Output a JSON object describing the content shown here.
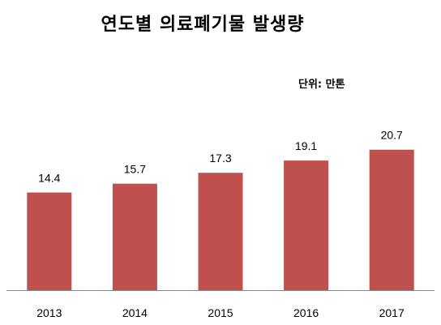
{
  "chart_data": {
    "type": "bar",
    "title": "연도별 의료폐기물 발생량",
    "unit_label": "단위: 만톤",
    "categories": [
      "2013",
      "2014",
      "2015",
      "2016",
      "2017"
    ],
    "values": [
      14.4,
      15.7,
      17.3,
      19.1,
      20.7
    ],
    "value_labels": [
      "14.4",
      "15.7",
      "17.3",
      "19.1",
      "20.7"
    ],
    "bar_color": "#c0504d",
    "axis_color": "#868686",
    "ylim": [
      0,
      25
    ],
    "grid": false,
    "legend": false,
    "data_labels": true
  }
}
